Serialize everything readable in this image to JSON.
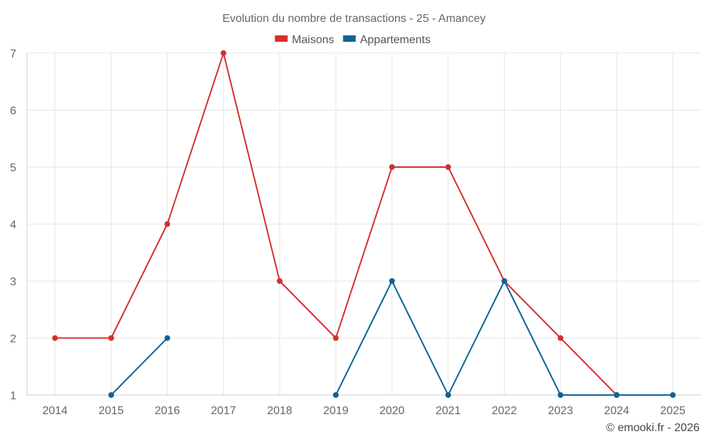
{
  "chart_data": {
    "type": "line",
    "title": "Evolution du nombre de transactions - 25 - Amancey",
    "x": [
      "2014",
      "2015",
      "2016",
      "2017",
      "2018",
      "2019",
      "2020",
      "2021",
      "2022",
      "2023",
      "2024",
      "2025"
    ],
    "series": [
      {
        "name": "Maisons",
        "color": "#d32f2f",
        "values": [
          2,
          2,
          4,
          7,
          3,
          2,
          5,
          5,
          3,
          2,
          1,
          null
        ]
      },
      {
        "name": "Appartements",
        "color": "#0d6396",
        "values": [
          null,
          1,
          2,
          null,
          null,
          1,
          3,
          1,
          3,
          1,
          1,
          1
        ]
      }
    ],
    "ylim": [
      1,
      7
    ],
    "yticks": [
      1,
      2,
      3,
      4,
      5,
      6,
      7
    ],
    "grid": true,
    "legend": "top-center"
  },
  "credit": "© emooki.fr - 2026"
}
